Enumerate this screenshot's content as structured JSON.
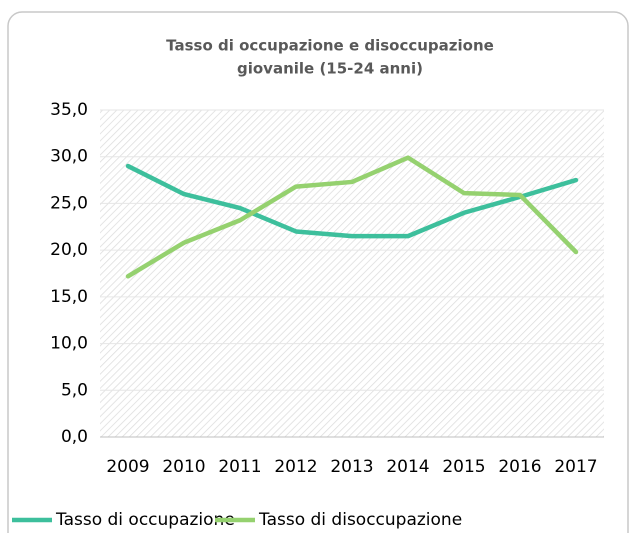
{
  "chart_data": {
    "type": "line",
    "title": [
      "Tasso di occupazione e disoccupazione",
      "giovanile  (15-24 anni)"
    ],
    "categories": [
      "2009",
      "2010",
      "2011",
      "2012",
      "2013",
      "2014",
      "2015",
      "2016",
      "2017"
    ],
    "series": [
      {
        "name": "Tasso di occupazione",
        "color": "#3dbf9c",
        "values": [
          29.0,
          26.0,
          24.5,
          22.0,
          21.5,
          21.5,
          24.0,
          25.7,
          27.5
        ]
      },
      {
        "name": "Tasso di disoccupazione",
        "color": "#95d16f",
        "values": [
          17.2,
          20.8,
          23.2,
          26.8,
          27.3,
          29.9,
          26.1,
          25.9,
          19.8
        ]
      }
    ],
    "ylim": [
      0,
      35
    ],
    "yticks": [
      {
        "value": 0,
        "label": "0,0"
      },
      {
        "value": 5,
        "label": "5,0"
      },
      {
        "value": 10,
        "label": "10,0"
      },
      {
        "value": 15,
        "label": "15,0"
      },
      {
        "value": 20,
        "label": "20,0"
      },
      {
        "value": 25,
        "label": "25,0"
      },
      {
        "value": 30,
        "label": "30,0"
      },
      {
        "value": 35,
        "label": "35,0"
      }
    ],
    "grid": true,
    "legend": "bottom"
  }
}
